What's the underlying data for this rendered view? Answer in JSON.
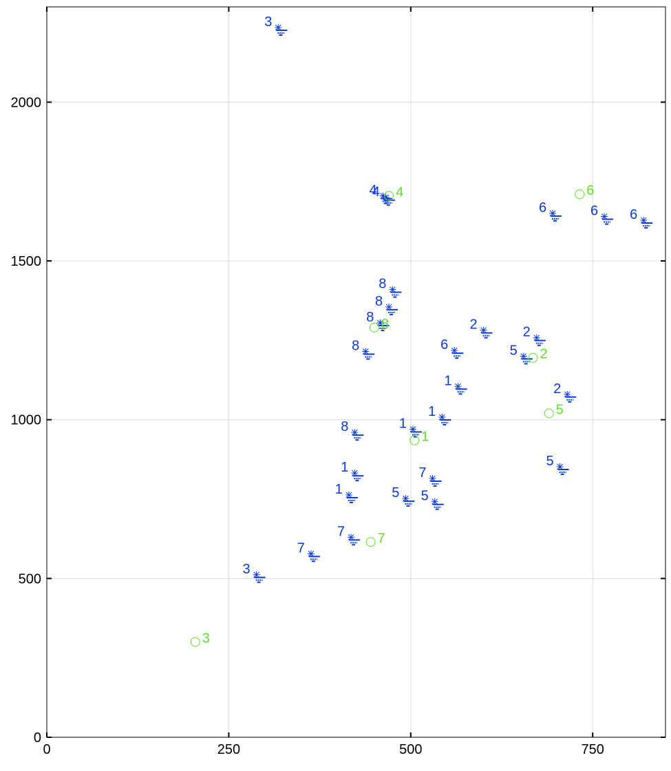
{
  "chart_data": {
    "type": "scatter",
    "title": "",
    "xlabel": "",
    "ylabel": "",
    "xlim": [
      0,
      850
    ],
    "ylim": [
      0,
      2300
    ],
    "grid": true,
    "xticks": [
      0,
      250,
      500,
      750
    ],
    "yticks": [
      0,
      500,
      1000,
      1500,
      2000
    ],
    "xtick_labels": [
      "0",
      "250",
      "500",
      "750"
    ],
    "ytick_labels": [
      "0",
      "500",
      "1000",
      "1500",
      "2000"
    ],
    "series": [
      {
        "marker": "star",
        "color": "#0a3ad6",
        "points": [
          {
            "x": 318,
            "y": 2235,
            "label": "3"
          },
          {
            "x": 462,
            "y": 1705,
            "label": "4"
          },
          {
            "x": 466,
            "y": 1700,
            "label": "4"
          },
          {
            "x": 695,
            "y": 1650,
            "label": "6"
          },
          {
            "x": 766,
            "y": 1640,
            "label": "6"
          },
          {
            "x": 820,
            "y": 1628,
            "label": "6"
          },
          {
            "x": 475,
            "y": 1410,
            "label": "8"
          },
          {
            "x": 470,
            "y": 1355,
            "label": "8"
          },
          {
            "x": 458,
            "y": 1305,
            "label": "8"
          },
          {
            "x": 438,
            "y": 1215,
            "label": "8"
          },
          {
            "x": 600,
            "y": 1282,
            "label": "2"
          },
          {
            "x": 673,
            "y": 1258,
            "label": "2"
          },
          {
            "x": 560,
            "y": 1218,
            "label": "6"
          },
          {
            "x": 655,
            "y": 1200,
            "label": "5"
          },
          {
            "x": 565,
            "y": 1105,
            "label": "1"
          },
          {
            "x": 715,
            "y": 1080,
            "label": "2"
          },
          {
            "x": 543,
            "y": 1008,
            "label": "1"
          },
          {
            "x": 503,
            "y": 970,
            "label": "1"
          },
          {
            "x": 423,
            "y": 960,
            "label": "8"
          },
          {
            "x": 705,
            "y": 852,
            "label": "5"
          },
          {
            "x": 423,
            "y": 832,
            "label": "1"
          },
          {
            "x": 530,
            "y": 815,
            "label": "7"
          },
          {
            "x": 415,
            "y": 763,
            "label": "1"
          },
          {
            "x": 493,
            "y": 752,
            "label": "5"
          },
          {
            "x": 533,
            "y": 742,
            "label": "5"
          },
          {
            "x": 418,
            "y": 630,
            "label": "7"
          },
          {
            "x": 363,
            "y": 578,
            "label": "7"
          },
          {
            "x": 288,
            "y": 512,
            "label": "3"
          }
        ]
      },
      {
        "marker": "circle",
        "color": "#5be22a",
        "points": [
          {
            "x": 732,
            "y": 1710,
            "label": "6"
          },
          {
            "x": 470,
            "y": 1705,
            "label": "4"
          },
          {
            "x": 450,
            "y": 1290,
            "label": "8"
          },
          {
            "x": 668,
            "y": 1195,
            "label": "2"
          },
          {
            "x": 690,
            "y": 1020,
            "label": "5"
          },
          {
            "x": 505,
            "y": 935,
            "label": "1"
          },
          {
            "x": 445,
            "y": 615,
            "label": "7"
          },
          {
            "x": 204,
            "y": 300,
            "label": "3"
          }
        ]
      }
    ]
  }
}
